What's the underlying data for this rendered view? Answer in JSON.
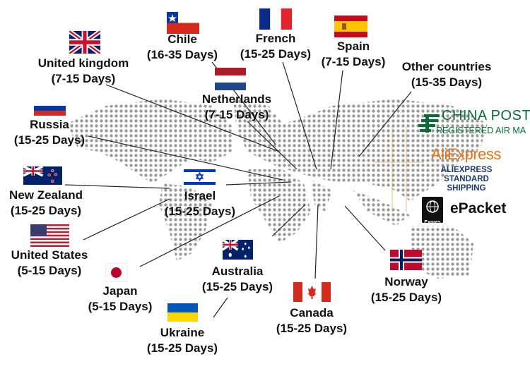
{
  "destinations": [
    {
      "country": "Chile",
      "days": "(16-35 Days)"
    },
    {
      "country": "United kingdom",
      "days": "(7-15 Days)"
    },
    {
      "country": "French",
      "days": "(15-25 Days)"
    },
    {
      "country": "Spain",
      "days": "(7-15 Days)"
    },
    {
      "country": "Other countries",
      "days": "(15-35 Days)"
    },
    {
      "country": "Netherlands",
      "days": "(7-15 Days)"
    },
    {
      "country": "Russia",
      "days": "(15-25 Days)"
    },
    {
      "country": "New Zealand",
      "days": "(15-25 Days)"
    },
    {
      "country": "Israel",
      "days": "(15-25 Days)"
    },
    {
      "country": "United States",
      "days": "(5-15 Days)"
    },
    {
      "country": "Japan",
      "days": "(5-15 Days)"
    },
    {
      "country": "Australia",
      "days": "(15-25 Days)"
    },
    {
      "country": "Canada",
      "days": "(15-25 Days)"
    },
    {
      "country": "Norway",
      "days": "(15-25 Days)"
    },
    {
      "country": "Ukraine",
      "days": "(15-25 Days)"
    }
  ],
  "carriers": {
    "china_post": {
      "title": "CHINA POST",
      "subtitle": "REGISTERED AIR MA",
      "color": "#0d6b3a"
    },
    "aliexpress": {
      "title": "AliExpress",
      "subtitle_1": "ALIEXPRESS",
      "subtitle_2": "STANDARD SHIPPING",
      "color": "#e8731a"
    },
    "epacket": {
      "title": "ePacket",
      "badge": "Expres"
    }
  },
  "colors": {
    "map_dots": "#9a9a9a",
    "lines": "#222222"
  }
}
